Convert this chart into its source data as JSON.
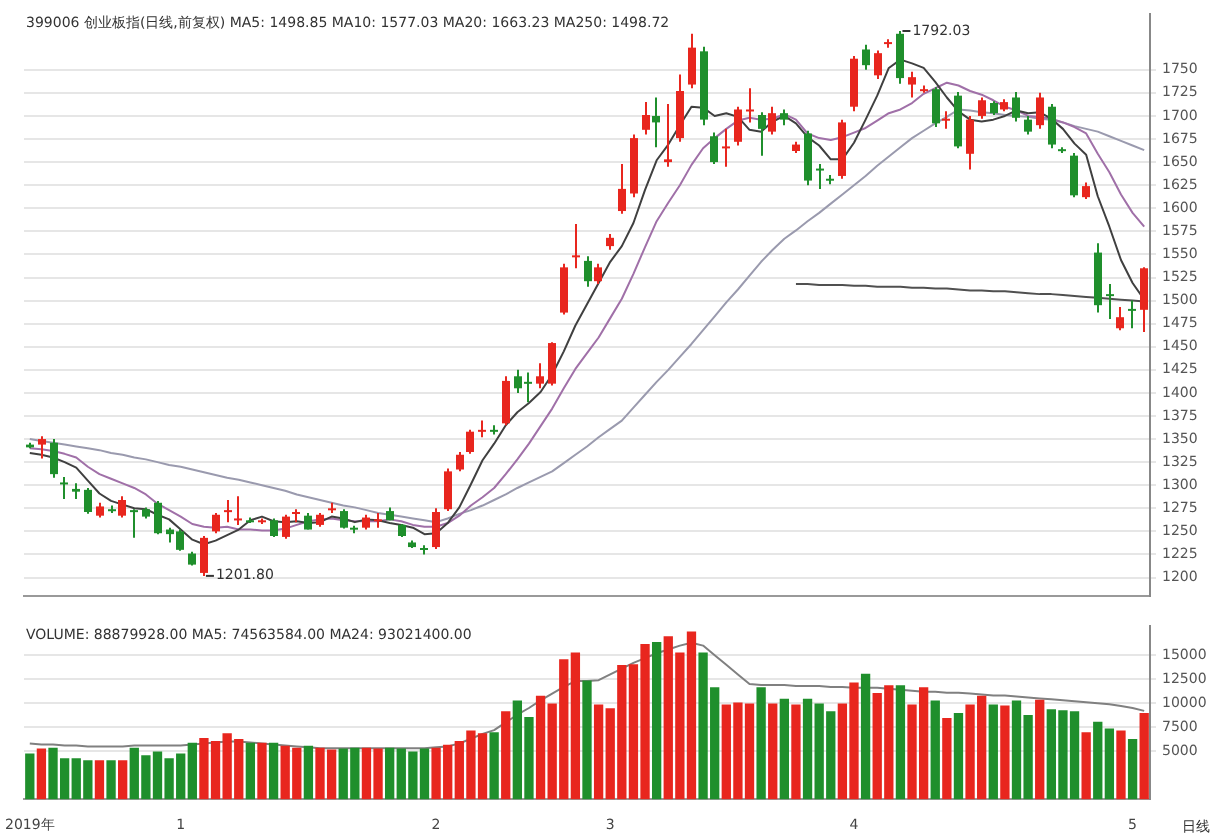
{
  "chart_data": [
    {
      "type": "candlestick",
      "title": "399006 创业板指(日线,前复权) MA5: 1498.85 MA10: 1577.03 MA20: 1663.23 MA250: 1498.72",
      "categories": [
        null,
        null,
        null,
        null,
        null,
        null,
        null,
        null,
        null,
        null,
        null,
        null,
        null,
        null,
        null,
        null,
        null,
        null,
        null,
        null,
        null,
        null,
        null,
        null,
        null,
        null,
        null,
        null,
        null,
        null,
        null,
        null,
        null,
        null,
        null,
        null,
        null,
        null,
        null,
        null,
        null,
        null,
        null,
        null,
        null,
        null,
        null,
        null,
        null,
        null,
        null,
        null,
        null,
        null,
        null,
        null,
        null,
        null,
        null,
        null,
        null,
        null,
        null,
        null,
        null,
        null,
        null,
        null,
        null,
        null,
        null,
        null,
        null,
        null,
        null,
        null,
        null,
        null,
        null,
        null,
        null,
        null,
        null,
        null,
        null,
        null,
        null,
        null,
        null,
        null,
        null,
        null,
        null,
        null,
        null,
        null,
        null
      ],
      "ohlc": [
        [
          1344,
          1346,
          1340,
          1341
        ],
        [
          1344,
          1353,
          1329,
          1350
        ],
        [
          1346,
          1350,
          1308,
          1312
        ],
        [
          1303,
          1309,
          1285,
          1301
        ],
        [
          1296,
          1302,
          1285,
          1293
        ],
        [
          1295,
          1297,
          1269,
          1271
        ],
        [
          1267,
          1281,
          1265,
          1277
        ],
        [
          1274,
          1278,
          1270,
          1272
        ],
        [
          1267,
          1288,
          1265,
          1284
        ],
        [
          1273,
          1274,
          1243,
          1271
        ],
        [
          1274,
          1276,
          1264,
          1266
        ],
        [
          1281,
          1283,
          1247,
          1248
        ],
        [
          1252,
          1254,
          1238,
          1247
        ],
        [
          1250,
          1252,
          1229,
          1230
        ],
        [
          1226,
          1228,
          1213,
          1214
        ],
        [
          1205,
          1245,
          1201.8,
          1243
        ],
        [
          1250,
          1270,
          1248,
          1268
        ],
        [
          1272,
          1284,
          1260,
          1273
        ],
        [
          1262,
          1288,
          1257,
          1264
        ],
        [
          1262,
          1265,
          1259,
          1261
        ],
        [
          1262,
          1264,
          1258,
          1262
        ],
        [
          1262,
          1264,
          1244,
          1245
        ],
        [
          1244,
          1268,
          1242,
          1266
        ],
        [
          1270,
          1274,
          1260,
          1271
        ],
        [
          1267,
          1270,
          1252,
          1252
        ],
        [
          1257,
          1270,
          1255,
          1268
        ],
        [
          1273,
          1281,
          1270,
          1275
        ],
        [
          1272,
          1274,
          1253,
          1254
        ],
        [
          1254,
          1256,
          1248,
          1252
        ],
        [
          1254,
          1268,
          1252,
          1265
        ],
        [
          1262,
          1270,
          1254,
          1263
        ],
        [
          1272,
          1276,
          1262,
          1262
        ],
        [
          1257,
          1258,
          1244,
          1245
        ],
        [
          1238,
          1240,
          1232,
          1233
        ],
        [
          1232,
          1235,
          1225,
          1230
        ],
        [
          1233,
          1275,
          1231,
          1271
        ],
        [
          1274,
          1318,
          1272,
          1315
        ],
        [
          1317,
          1336,
          1315,
          1333
        ],
        [
          1336,
          1360,
          1334,
          1358
        ],
        [
          1359,
          1370,
          1352,
          1360
        ],
        [
          1360,
          1365,
          1355,
          1359
        ],
        [
          1367,
          1418,
          1365,
          1413
        ],
        [
          1418,
          1425,
          1400,
          1405
        ],
        [
          1412,
          1422,
          1390,
          1410
        ],
        [
          1410,
          1432,
          1405,
          1418
        ],
        [
          1410,
          1455,
          1408,
          1454
        ],
        [
          1487,
          1540,
          1485,
          1536
        ],
        [
          1548,
          1583,
          1535,
          1549
        ],
        [
          1543,
          1548,
          1515,
          1521
        ],
        [
          1521,
          1540,
          1518,
          1536
        ],
        [
          1559,
          1572,
          1555,
          1568
        ],
        [
          1597,
          1648,
          1594,
          1621
        ],
        [
          1616,
          1680,
          1612,
          1676
        ],
        [
          1685,
          1715,
          1680,
          1701
        ],
        [
          1700,
          1720,
          1666,
          1693
        ],
        [
          1650,
          1713,
          1645,
          1653
        ],
        [
          1676,
          1745,
          1672,
          1727
        ],
        [
          1734,
          1789,
          1730,
          1774
        ],
        [
          1770,
          1775,
          1690,
          1696
        ],
        [
          1678,
          1682,
          1648,
          1650
        ],
        [
          1665,
          1686,
          1645,
          1667
        ],
        [
          1672,
          1710,
          1668,
          1707
        ],
        [
          1706,
          1730,
          1693,
          1707
        ],
        [
          1701,
          1704,
          1657,
          1686
        ],
        [
          1683,
          1710,
          1680,
          1703
        ],
        [
          1703,
          1707,
          1690,
          1696
        ],
        [
          1662,
          1672,
          1660,
          1669
        ],
        [
          1681,
          1684,
          1625,
          1630
        ],
        [
          1643,
          1648,
          1621,
          1641
        ],
        [
          1632,
          1636,
          1626,
          1630
        ],
        [
          1635,
          1696,
          1632,
          1693
        ],
        [
          1710,
          1765,
          1705,
          1762
        ],
        [
          1772,
          1777,
          1750,
          1755
        ],
        [
          1744,
          1771,
          1740,
          1768
        ],
        [
          1778,
          1783,
          1774,
          1780
        ],
        [
          1789,
          1792.03,
          1735,
          1741
        ],
        [
          1734,
          1748,
          1720,
          1742
        ],
        [
          1728,
          1733,
          1725,
          1729
        ],
        [
          1729,
          1731,
          1688,
          1692
        ],
        [
          1695,
          1705,
          1686,
          1697
        ],
        [
          1722,
          1726,
          1665,
          1667
        ],
        [
          1659,
          1700,
          1642,
          1696
        ],
        [
          1700,
          1720,
          1697,
          1717
        ],
        [
          1714,
          1716,
          1701,
          1703
        ],
        [
          1707,
          1718,
          1705,
          1715
        ],
        [
          1720,
          1726,
          1694,
          1698
        ],
        [
          1696,
          1700,
          1680,
          1683
        ],
        [
          1690,
          1725,
          1686,
          1720
        ],
        [
          1710,
          1713,
          1665,
          1669
        ],
        [
          1664,
          1666,
          1660,
          1662
        ],
        [
          1657,
          1660,
          1612,
          1614
        ],
        [
          1612,
          1628,
          1610,
          1624
        ],
        [
          1552,
          1562,
          1487,
          1495
        ],
        [
          1507,
          1518,
          1480,
          1505
        ],
        [
          1470,
          1493,
          1468,
          1482
        ],
        [
          1491,
          1500,
          1470,
          1489
        ],
        [
          1490,
          1536,
          1466,
          1535
        ]
      ],
      "colors": [
        "#1f8f2c",
        "#e8261e",
        "#1f8f2c",
        "#1f8f2c",
        "#1f8f2c",
        "#1f8f2c",
        "#e8261e",
        "#1f8f2c",
        "#e8261e",
        "#1f8f2c",
        "#1f8f2c",
        "#1f8f2c",
        "#1f8f2c",
        "#1f8f2c",
        "#1f8f2c",
        "#e8261e",
        "#e8261e",
        "#e8261e",
        "#e8261e",
        "#1f8f2c",
        "#e8261e",
        "#1f8f2c",
        "#e8261e",
        "#e8261e",
        "#1f8f2c",
        "#e8261e",
        "#e8261e",
        "#1f8f2c",
        "#1f8f2c",
        "#e8261e",
        "#e8261e",
        "#1f8f2c",
        "#1f8f2c",
        "#1f8f2c",
        "#1f8f2c",
        "#e8261e",
        "#e8261e",
        "#e8261e",
        "#e8261e",
        "#e8261e",
        "#1f8f2c",
        "#e8261e",
        "#1f8f2c",
        "#1f8f2c",
        "#e8261e",
        "#e8261e",
        "#e8261e",
        "#e8261e",
        "#1f8f2c",
        "#e8261e",
        "#e8261e",
        "#e8261e",
        "#e8261e",
        "#e8261e",
        "#1f8f2c",
        "#e8261e",
        "#e8261e",
        "#e8261e",
        "#1f8f2c",
        "#1f8f2c",
        "#e8261e",
        "#e8261e",
        "#e8261e",
        "#1f8f2c",
        "#e8261e",
        "#1f8f2c",
        "#e8261e",
        "#1f8f2c",
        "#1f8f2c",
        "#1f8f2c",
        "#e8261e",
        "#e8261e",
        "#1f8f2c",
        "#e8261e",
        "#e8261e",
        "#1f8f2c",
        "#e8261e",
        "#e8261e",
        "#1f8f2c",
        "#e8261e",
        "#1f8f2c",
        "#e8261e",
        "#e8261e",
        "#1f8f2c",
        "#e8261e",
        "#1f8f2c",
        "#1f8f2c",
        "#e8261e",
        "#1f8f2c",
        "#1f8f2c",
        "#1f8f2c",
        "#e8261e",
        "#1f8f2c",
        "#1f8f2c",
        "#e8261e",
        "#1f8f2c",
        "#e8261e"
      ],
      "series": [
        {
          "type": "line",
          "color": "#404040",
          "values": [
            1335,
            1333,
            1330,
            1325,
            1319,
            1305,
            1291,
            1283,
            1279,
            1275,
            1274,
            1268,
            1263,
            1252,
            1241,
            1236,
            1240,
            1246,
            1252,
            1262,
            1266,
            1261,
            1260,
            1261,
            1259,
            1260,
            1266,
            1264,
            1260,
            1263,
            1262,
            1259,
            1257,
            1254,
            1247,
            1248,
            1259,
            1276,
            1301,
            1327,
            1345,
            1365,
            1379,
            1389,
            1401,
            1420,
            1445,
            1473,
            1496,
            1519,
            1542,
            1559,
            1584,
            1620,
            1652,
            1669,
            1690,
            1710,
            1709,
            1700,
            1703,
            1699,
            1685,
            1683,
            1694,
            1700,
            1692,
            1677,
            1668,
            1653,
            1653,
            1671,
            1696,
            1722,
            1752,
            1761,
            1757,
            1752,
            1737,
            1720,
            1705,
            1696,
            1694,
            1696,
            1700,
            1706,
            1703,
            1704,
            1697,
            1686,
            1670,
            1658,
            1613,
            1580,
            1544,
            1519,
            1501
          ]
        },
        {
          "type": "line",
          "color": "#a070a8",
          "values": [
            1340,
            1339,
            1337,
            1334,
            1330,
            1320,
            1312,
            1307,
            1302,
            1297,
            1290,
            1280,
            1273,
            1266,
            1258,
            1255,
            1254,
            1255,
            1252,
            1252,
            1251,
            1251,
            1253,
            1257,
            1261,
            1263,
            1264,
            1262,
            1261,
            1261,
            1261,
            1263,
            1261,
            1257,
            1255,
            1255,
            1259,
            1267,
            1278,
            1287,
            1297,
            1312,
            1328,
            1345,
            1364,
            1383,
            1405,
            1426,
            1443,
            1460,
            1481,
            1502,
            1529,
            1558,
            1586,
            1606,
            1625,
            1647,
            1665,
            1676,
            1686,
            1695,
            1698,
            1696,
            1697,
            1702,
            1696,
            1681,
            1676,
            1674,
            1677,
            1682,
            1687,
            1695,
            1703,
            1707,
            1714,
            1724,
            1730,
            1736,
            1733,
            1727,
            1723,
            1717,
            1710,
            1706,
            1700,
            1699,
            1697,
            1693,
            1688,
            1681,
            1659,
            1639,
            1615,
            1595,
            1580
          ]
        },
        {
          "type": "line",
          "color": "#9a9aae",
          "values": [
            1350,
            1348,
            1346,
            1344,
            1342,
            1340,
            1338,
            1335,
            1333,
            1330,
            1328,
            1325,
            1322,
            1320,
            1317,
            1314,
            1311,
            1308,
            1306,
            1303,
            1300,
            1297,
            1294,
            1290,
            1287,
            1284,
            1281,
            1278,
            1276,
            1273,
            1270,
            1268,
            1266,
            1264,
            1262,
            1260,
            1264,
            1269,
            1273,
            1278,
            1284,
            1290,
            1297,
            1303,
            1309,
            1315,
            1324,
            1333,
            1342,
            1352,
            1361,
            1370,
            1384,
            1398,
            1412,
            1425,
            1439,
            1453,
            1468,
            1483,
            1498,
            1512,
            1527,
            1542,
            1555,
            1567,
            1576,
            1586,
            1595,
            1605,
            1615,
            1625,
            1635,
            1646,
            1656,
            1666,
            1676,
            1684,
            1692,
            1699,
            1707,
            1706,
            1704,
            1703,
            1701,
            1700,
            1699,
            1697,
            1696,
            1693,
            1689,
            1686,
            1683,
            1678,
            1673,
            1668,
            1663
          ]
        },
        {
          "type": "line",
          "color": "#505050",
          "values": [
            null,
            null,
            null,
            null,
            null,
            null,
            null,
            null,
            null,
            null,
            null,
            null,
            null,
            null,
            null,
            null,
            null,
            null,
            null,
            null,
            null,
            null,
            null,
            null,
            null,
            null,
            null,
            null,
            null,
            null,
            null,
            null,
            null,
            null,
            null,
            null,
            null,
            null,
            null,
            null,
            null,
            null,
            null,
            null,
            null,
            null,
            null,
            null,
            null,
            null,
            null,
            null,
            null,
            null,
            null,
            null,
            null,
            null,
            null,
            null,
            null,
            null,
            null,
            null,
            null,
            null,
            1518,
            1518,
            1517,
            1517,
            1517,
            1516,
            1516,
            1515,
            1515,
            1515,
            1514,
            1514,
            1513,
            1513,
            1512,
            1511,
            1511,
            1510,
            1510,
            1509,
            1508,
            1507,
            1507,
            1506,
            1505,
            1504,
            1503,
            1502,
            1501,
            1500,
            1499
          ]
        }
      ],
      "ylim": [
        1180,
        1810
      ],
      "yticks": [
        1200,
        1225,
        1250,
        1275,
        1300,
        1325,
        1350,
        1375,
        1400,
        1425,
        1450,
        1475,
        1500,
        1525,
        1550,
        1575,
        1600,
        1625,
        1650,
        1675,
        1700,
        1725,
        1750
      ],
      "grid": "y",
      "tick_labels": "y",
      "annotations": [
        "1201.80",
        "1792.03"
      ]
    },
    {
      "type": "bar",
      "title": "VOLUME: 88879928.00 MA5: 74563584.00 MA24: 93021400.00",
      "categories": [
        "2019年",
        null,
        null,
        null,
        null,
        null,
        null,
        null,
        null,
        null,
        null,
        null,
        null,
        "1",
        null,
        null,
        null,
        null,
        null,
        null,
        null,
        null,
        null,
        null,
        null,
        null,
        null,
        null,
        null,
        null,
        null,
        null,
        null,
        null,
        null,
        "2",
        null,
        null,
        null,
        null,
        null,
        null,
        null,
        null,
        null,
        null,
        null,
        null,
        null,
        null,
        "3",
        null,
        null,
        null,
        null,
        null,
        null,
        null,
        null,
        null,
        null,
        null,
        null,
        null,
        null,
        null,
        null,
        null,
        null,
        null,
        null,
        "4",
        null,
        null,
        null,
        null,
        null,
        null,
        null,
        null,
        null,
        null,
        null,
        null,
        null,
        null,
        null,
        null,
        null,
        null,
        null,
        null,
        null,
        null,
        null,
        "5",
        null
      ],
      "series": [
        {
          "type": "bar",
          "colors": [
            "#1f8f2c",
            "#e8261e",
            "#1f8f2c",
            "#1f8f2c",
            "#1f8f2c",
            "#1f8f2c",
            "#e8261e",
            "#1f8f2c",
            "#e8261e",
            "#1f8f2c",
            "#1f8f2c",
            "#1f8f2c",
            "#1f8f2c",
            "#1f8f2c",
            "#1f8f2c",
            "#e8261e",
            "#e8261e",
            "#e8261e",
            "#e8261e",
            "#1f8f2c",
            "#e8261e",
            "#1f8f2c",
            "#e8261e",
            "#e8261e",
            "#1f8f2c",
            "#e8261e",
            "#e8261e",
            "#1f8f2c",
            "#1f8f2c",
            "#e8261e",
            "#e8261e",
            "#1f8f2c",
            "#1f8f2c",
            "#1f8f2c",
            "#1f8f2c",
            "#e8261e",
            "#e8261e",
            "#e8261e",
            "#e8261e",
            "#e8261e",
            "#1f8f2c",
            "#e8261e",
            "#1f8f2c",
            "#1f8f2c",
            "#e8261e",
            "#e8261e",
            "#e8261e",
            "#e8261e",
            "#1f8f2c",
            "#e8261e",
            "#e8261e",
            "#e8261e",
            "#e8261e",
            "#e8261e",
            "#1f8f2c",
            "#e8261e",
            "#e8261e",
            "#e8261e",
            "#1f8f2c",
            "#1f8f2c",
            "#e8261e",
            "#e8261e",
            "#e8261e",
            "#1f8f2c",
            "#e8261e",
            "#1f8f2c",
            "#e8261e",
            "#1f8f2c",
            "#1f8f2c",
            "#1f8f2c",
            "#e8261e",
            "#e8261e",
            "#1f8f2c",
            "#e8261e",
            "#e8261e",
            "#1f8f2c",
            "#e8261e",
            "#e8261e",
            "#1f8f2c",
            "#e8261e",
            "#1f8f2c",
            "#e8261e",
            "#e8261e",
            "#1f8f2c",
            "#e8261e",
            "#1f8f2c",
            "#1f8f2c",
            "#e8261e",
            "#1f8f2c",
            "#1f8f2c",
            "#1f8f2c",
            "#e8261e",
            "#1f8f2c",
            "#1f8f2c",
            "#e8261e",
            "#1f8f2c",
            "#e8261e"
          ],
          "values": [
            4700,
            5200,
            5300,
            4200,
            4200,
            4000,
            4000,
            4000,
            4000,
            5300,
            4500,
            4900,
            4200,
            4700,
            5800,
            6300,
            6000,
            6800,
            6200,
            5800,
            5800,
            5800,
            5500,
            5300,
            5500,
            5300,
            5100,
            5200,
            5300,
            5300,
            5200,
            5300,
            5200,
            4900,
            5200,
            5300,
            5600,
            6000,
            7100,
            6800,
            6900,
            9100,
            10200,
            8500,
            10700,
            9900,
            14500,
            15200,
            12300,
            9800,
            9400,
            13900,
            14000,
            16100,
            16300,
            16900,
            15200,
            17400,
            15200,
            11600,
            9800,
            10000,
            9900,
            11600,
            9900,
            10400,
            9800,
            10400,
            9900,
            9100,
            9900,
            12100,
            13000,
            11000,
            11800,
            11800,
            9800,
            11600,
            10200,
            8400,
            8900,
            9800,
            10700,
            9800,
            9700,
            10200,
            8700,
            10300,
            9300,
            9200,
            9100,
            6900,
            8000,
            7300,
            7100,
            6200,
            8900
          ]
        },
        {
          "type": "line",
          "color": "#808080",
          "values": [
            5800,
            5700,
            5700,
            5600,
            5600,
            5500,
            5500,
            5500,
            5500,
            5600,
            5600,
            5600,
            5600,
            5600,
            5700,
            5800,
            5900,
            6000,
            6000,
            5900,
            5800,
            5700,
            5600,
            5500,
            5400,
            5300,
            5300,
            5300,
            5300,
            5300,
            5300,
            5300,
            5300,
            5300,
            5300,
            5400,
            5500,
            5800,
            6300,
            6800,
            7200,
            8000,
            8800,
            9500,
            10300,
            11000,
            11700,
            12300,
            12300,
            12400,
            13000,
            13600,
            14200,
            14700,
            15200,
            15600,
            16000,
            16300,
            16000,
            15000,
            14000,
            13000,
            12000,
            11900,
            11900,
            11900,
            11800,
            11800,
            11800,
            11700,
            11700,
            11600,
            11600,
            11600,
            11500,
            11400,
            11300,
            11200,
            11200,
            11100,
            11100,
            11000,
            10900,
            10800,
            10800,
            10700,
            10600,
            10500,
            10400,
            10300,
            10200,
            10100,
            10000,
            9900,
            9700,
            9500,
            9200
          ]
        }
      ],
      "ylim": [
        0,
        18000
      ],
      "yticks": [
        5000,
        7500,
        10000,
        12500,
        15000
      ],
      "grid": "y",
      "annotations": [
        "日线"
      ]
    }
  ]
}
